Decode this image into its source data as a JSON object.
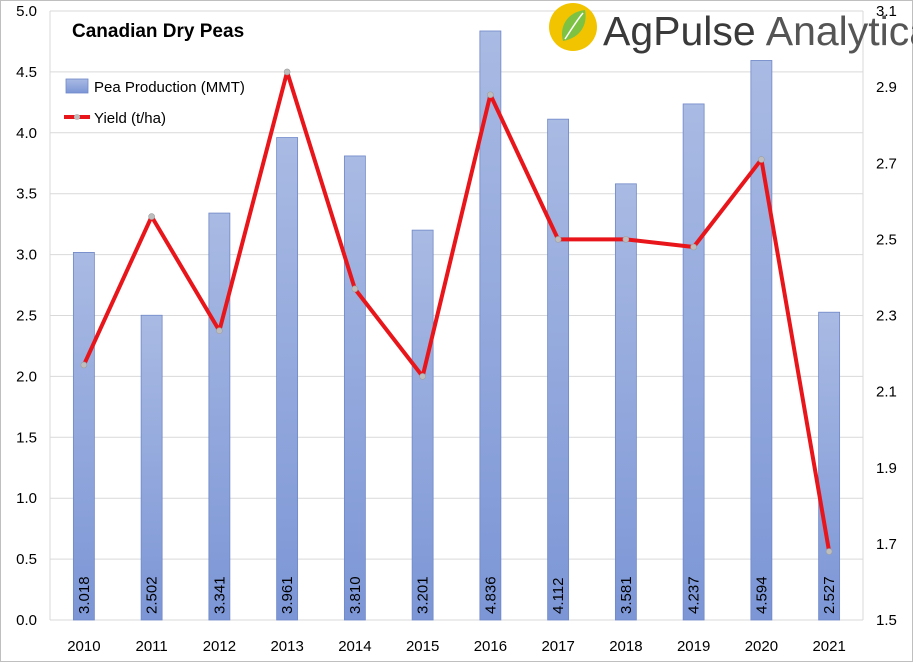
{
  "chart_data": {
    "type": "bar",
    "title": "Canadian Dry Peas",
    "categories": [
      "2010",
      "2011",
      "2012",
      "2013",
      "2014",
      "2015",
      "2016",
      "2017",
      "2018",
      "2019",
      "2020",
      "2021"
    ],
    "series": [
      {
        "name": "Pea Production (MMT)",
        "type": "bar",
        "axis": "left",
        "color": "#8FA6DB",
        "values": [
          3.018,
          2.502,
          3.341,
          3.961,
          3.81,
          3.201,
          4.836,
          4.112,
          3.581,
          4.237,
          4.594,
          2.527
        ],
        "labels": [
          "3.018",
          "2.502",
          "3.341",
          "3.961",
          "3.810",
          "3.201",
          "4.836",
          "4.112",
          "3.581",
          "4.237",
          "4.594",
          "2.527"
        ]
      },
      {
        "name": "Yield (t/ha)",
        "type": "line",
        "axis": "right",
        "color": "#E8161B",
        "values": [
          2.17,
          2.56,
          2.26,
          2.94,
          2.37,
          2.14,
          2.88,
          2.5,
          2.5,
          2.48,
          2.71,
          1.68
        ]
      }
    ],
    "y_left": {
      "lim": [
        0,
        5.0
      ],
      "ticks": [
        "0.0",
        "0.5",
        "1.0",
        "1.5",
        "2.0",
        "2.5",
        "3.0",
        "3.5",
        "4.0",
        "4.5",
        "5.0"
      ]
    },
    "y_right": {
      "lim": [
        1.5,
        3.1
      ],
      "ticks": [
        "1.5",
        "1.7",
        "1.9",
        "2.1",
        "2.3",
        "2.5",
        "2.7",
        "2.9",
        "3.1"
      ]
    },
    "grid": "horizontal",
    "legend_position": "top-left"
  },
  "logo": {
    "brand_part1": "AgPulse",
    "brand_part2": "Analytica",
    "leaf_color": "#7DC242",
    "circle_color": "#F2C400"
  }
}
